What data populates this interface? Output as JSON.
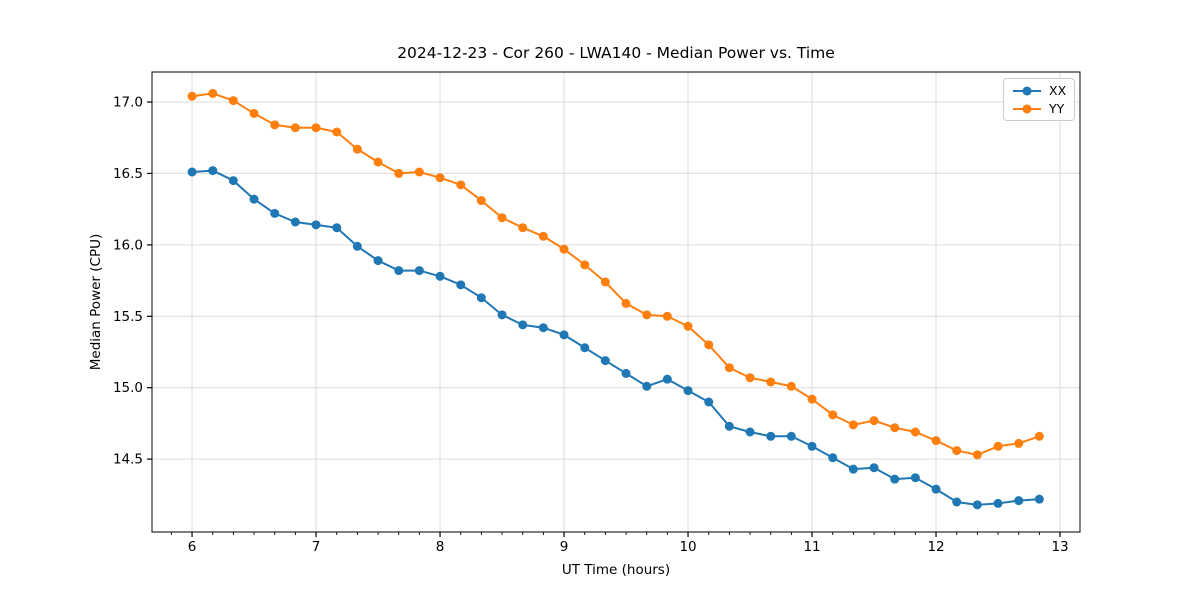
{
  "chart_data": {
    "type": "line",
    "title": "2024-12-23 - Cor 260 - LWA140 - Median Power vs. Time",
    "xlabel": "UT Time (hours)",
    "ylabel": "Median Power (CPU)",
    "xlim": [
      5.677,
      13.161
    ],
    "ylim": [
      13.99,
      17.21
    ],
    "x_ticks": [
      6,
      7,
      8,
      9,
      10,
      11,
      12,
      13
    ],
    "y_ticks": [
      14.5,
      15.0,
      15.5,
      16.0,
      16.5,
      17.0
    ],
    "x_minor_step": 0.16667,
    "grid": true,
    "legend_position": "upper right",
    "grid_color": "#dcdcdc",
    "axis_color": "#000000",
    "marker": "circle",
    "x": [
      6.0,
      6.167,
      6.333,
      6.5,
      6.667,
      6.833,
      7.0,
      7.167,
      7.333,
      7.5,
      7.667,
      7.833,
      8.0,
      8.167,
      8.333,
      8.5,
      8.667,
      8.833,
      9.0,
      9.167,
      9.333,
      9.5,
      9.667,
      9.833,
      10.0,
      10.167,
      10.333,
      10.5,
      10.667,
      10.833,
      11.0,
      11.167,
      11.333,
      11.5,
      11.667,
      11.833,
      12.0,
      12.167,
      12.333,
      12.5,
      12.667,
      12.833
    ],
    "series": [
      {
        "name": "XX",
        "color": "#1f77b4",
        "values": [
          16.51,
          16.52,
          16.45,
          16.32,
          16.22,
          16.16,
          16.14,
          16.12,
          15.99,
          15.89,
          15.82,
          15.82,
          15.78,
          15.72,
          15.63,
          15.51,
          15.44,
          15.42,
          15.37,
          15.28,
          15.19,
          15.1,
          15.01,
          15.06,
          14.98,
          14.9,
          14.73,
          14.69,
          14.66,
          14.66,
          14.59,
          14.51,
          14.43,
          14.44,
          14.36,
          14.37,
          14.29,
          14.2,
          14.18,
          14.19,
          14.21,
          14.22
        ]
      },
      {
        "name": "YY",
        "color": "#ff7f0e",
        "values": [
          17.04,
          17.06,
          17.01,
          16.92,
          16.84,
          16.82,
          16.82,
          16.79,
          16.67,
          16.58,
          16.5,
          16.51,
          16.47,
          16.42,
          16.31,
          16.19,
          16.12,
          16.06,
          15.97,
          15.86,
          15.74,
          15.59,
          15.51,
          15.5,
          15.43,
          15.3,
          15.14,
          15.07,
          15.04,
          15.01,
          14.92,
          14.81,
          14.74,
          14.77,
          14.72,
          14.69,
          14.63,
          14.56,
          14.53,
          14.59,
          14.61,
          14.66
        ]
      }
    ]
  }
}
